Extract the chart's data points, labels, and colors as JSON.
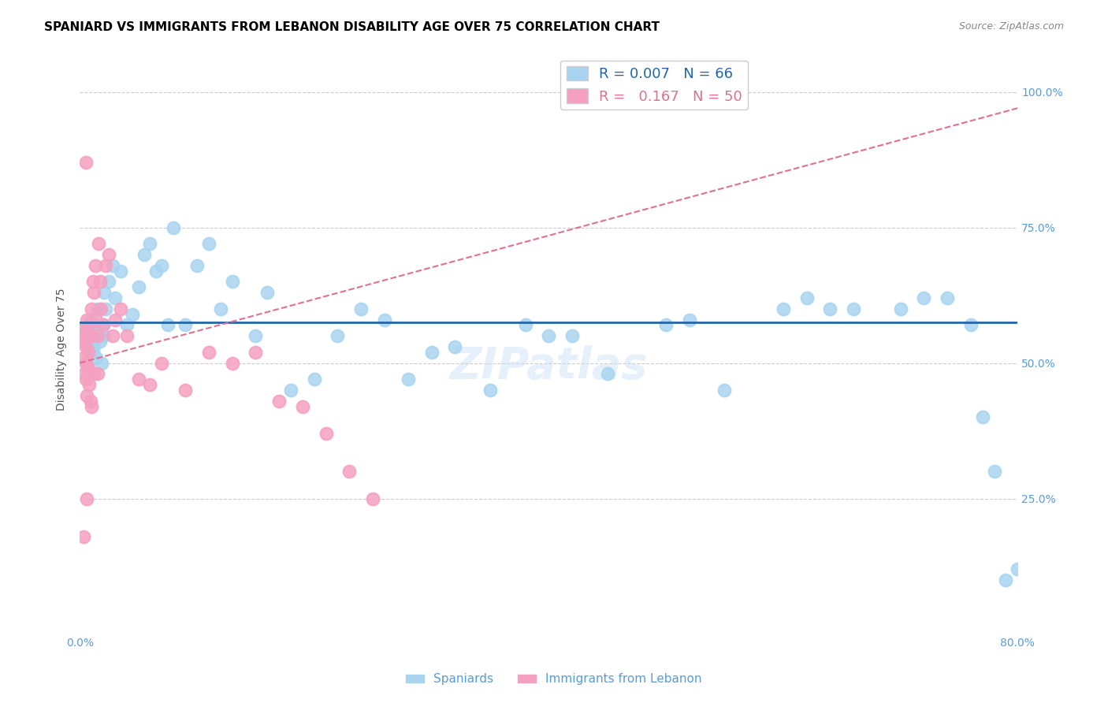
{
  "title": "SPANIARD VS IMMIGRANTS FROM LEBANON DISABILITY AGE OVER 75 CORRELATION CHART",
  "source": "Source: ZipAtlas.com",
  "ylabel": "Disability Age Over 75",
  "x_ticks": [
    0.0,
    0.1,
    0.2,
    0.3,
    0.4,
    0.5,
    0.6,
    0.7,
    0.8
  ],
  "x_tick_labels": [
    "0.0%",
    "",
    "",
    "",
    "",
    "",
    "",
    "",
    "80.0%"
  ],
  "y_ticks": [
    0.0,
    0.25,
    0.5,
    0.75,
    1.0
  ],
  "y_tick_labels": [
    "",
    "25.0%",
    "50.0%",
    "75.0%",
    "100.0%"
  ],
  "xlim": [
    0.0,
    0.8
  ],
  "ylim": [
    0.0,
    1.05
  ],
  "legend_entries": [
    {
      "label": "R = 0.007   N = 66",
      "color": "#6baed6"
    },
    {
      "label": "R =   0.167   N = 50",
      "color": "#fb6eb3"
    }
  ],
  "legend_label_spaniards": "Spaniards",
  "legend_label_immigrants": "Immigrants from Lebanon",
  "watermark": "ZIPatlas",
  "blue_scatter_x": [
    0.005,
    0.007,
    0.008,
    0.01,
    0.01,
    0.011,
    0.012,
    0.013,
    0.014,
    0.015,
    0.016,
    0.017,
    0.018,
    0.019,
    0.02,
    0.02,
    0.021,
    0.022,
    0.025,
    0.028,
    0.03,
    0.035,
    0.04,
    0.045,
    0.05,
    0.055,
    0.06,
    0.065,
    0.07,
    0.075,
    0.08,
    0.09,
    0.1,
    0.11,
    0.12,
    0.13,
    0.15,
    0.16,
    0.18,
    0.2,
    0.22,
    0.24,
    0.26,
    0.28,
    0.3,
    0.32,
    0.35,
    0.38,
    0.4,
    0.42,
    0.45,
    0.5,
    0.52,
    0.55,
    0.6,
    0.62,
    0.64,
    0.66,
    0.7,
    0.72,
    0.74,
    0.76,
    0.77,
    0.78,
    0.79,
    0.8
  ],
  "blue_scatter_y": [
    0.56,
    0.57,
    0.55,
    0.54,
    0.58,
    0.52,
    0.53,
    0.57,
    0.51,
    0.6,
    0.56,
    0.54,
    0.55,
    0.5,
    0.55,
    0.57,
    0.63,
    0.6,
    0.65,
    0.68,
    0.62,
    0.67,
    0.57,
    0.59,
    0.64,
    0.7,
    0.72,
    0.67,
    0.68,
    0.57,
    0.75,
    0.57,
    0.68,
    0.72,
    0.6,
    0.65,
    0.55,
    0.63,
    0.45,
    0.47,
    0.55,
    0.6,
    0.58,
    0.47,
    0.52,
    0.53,
    0.45,
    0.57,
    0.55,
    0.55,
    0.48,
    0.57,
    0.58,
    0.45,
    0.6,
    0.62,
    0.6,
    0.6,
    0.6,
    0.62,
    0.62,
    0.57,
    0.4,
    0.3,
    0.1,
    0.12
  ],
  "pink_scatter_x": [
    0.002,
    0.003,
    0.003,
    0.004,
    0.004,
    0.005,
    0.005,
    0.005,
    0.006,
    0.006,
    0.007,
    0.007,
    0.008,
    0.008,
    0.009,
    0.009,
    0.01,
    0.01,
    0.011,
    0.012,
    0.012,
    0.013,
    0.014,
    0.015,
    0.015,
    0.016,
    0.017,
    0.018,
    0.02,
    0.022,
    0.025,
    0.028,
    0.03,
    0.035,
    0.04,
    0.05,
    0.06,
    0.07,
    0.09,
    0.11,
    0.13,
    0.15,
    0.17,
    0.19,
    0.21,
    0.23,
    0.25,
    0.005,
    0.006,
    0.003
  ],
  "pink_scatter_y": [
    0.56,
    0.54,
    0.51,
    0.48,
    0.55,
    0.53,
    0.5,
    0.47,
    0.58,
    0.44,
    0.52,
    0.49,
    0.57,
    0.46,
    0.55,
    0.43,
    0.6,
    0.42,
    0.65,
    0.63,
    0.48,
    0.68,
    0.58,
    0.55,
    0.48,
    0.72,
    0.65,
    0.6,
    0.57,
    0.68,
    0.7,
    0.55,
    0.58,
    0.6,
    0.55,
    0.47,
    0.46,
    0.5,
    0.45,
    0.52,
    0.5,
    0.52,
    0.43,
    0.42,
    0.37,
    0.3,
    0.25,
    0.87,
    0.25,
    0.18
  ],
  "blue_line_x": [
    0.0,
    0.8
  ],
  "blue_line_y": [
    0.575,
    0.575
  ],
  "pink_line_x": [
    0.0,
    0.8
  ],
  "pink_line_y": [
    0.5,
    0.97
  ],
  "blue_line_color": "#2166ac",
  "pink_line_color": "#e07090",
  "blue_scatter_color": "#a8d4f0",
  "pink_scatter_color": "#f5a0c0",
  "grid_color": "#cccccc",
  "axis_label_color": "#5b9bd5",
  "title_color": "#000000",
  "background_color": "#ffffff",
  "title_fontsize": 11,
  "axis_label_fontsize": 10,
  "tick_fontsize": 10,
  "legend_fontsize": 13,
  "watermark_fontsize": 40,
  "watermark_color": "#c8dff5",
  "watermark_alpha": 0.45
}
